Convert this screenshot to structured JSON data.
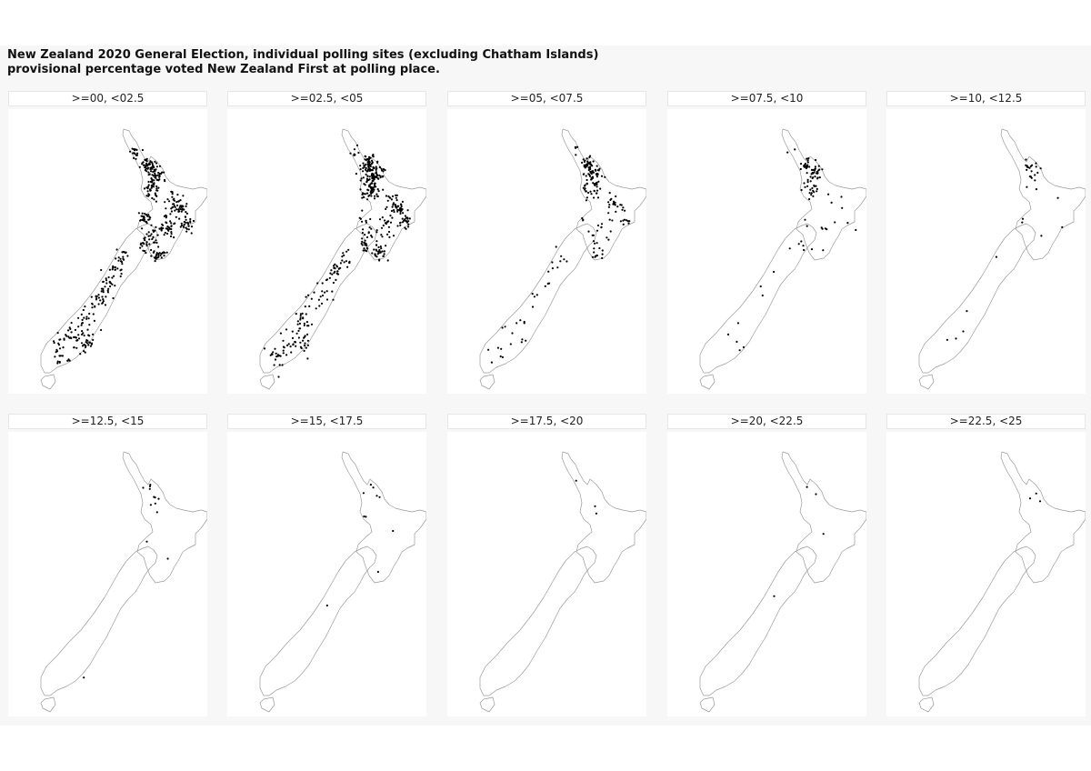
{
  "title": {
    "line1": "New Zealand 2020 General Election, individual polling sites (excluding Chatham Islands)",
    "line2": "provisional percentage voted New Zealand First at polling place."
  },
  "panels": [
    {
      "label": ">=00, <02.5",
      "relative_point_density": 1.0
    },
    {
      "label": ">=02.5, <05",
      "relative_point_density": 0.9
    },
    {
      "label": ">=05, <07.5",
      "relative_point_density": 0.38
    },
    {
      "label": ">=07.5, <10",
      "relative_point_density": 0.18
    },
    {
      "label": ">=10, <12.5",
      "relative_point_density": 0.06
    },
    {
      "label": ">=12.5, <15",
      "relative_point_density": 0.025
    },
    {
      "label": ">=15, <17.5",
      "relative_point_density": 0.02
    },
    {
      "label": ">=17.5, <20",
      "relative_point_density": 0.005
    },
    {
      "label": ">=20, <22.5",
      "relative_point_density": 0.008
    },
    {
      "label": ">=22.5, <25",
      "relative_point_density": 0.006
    }
  ],
  "colors": {
    "points": "#000000",
    "coastline": "#9a9a9a",
    "panel_background": "#ffffff",
    "figure_background": "#f7f7f7"
  }
}
